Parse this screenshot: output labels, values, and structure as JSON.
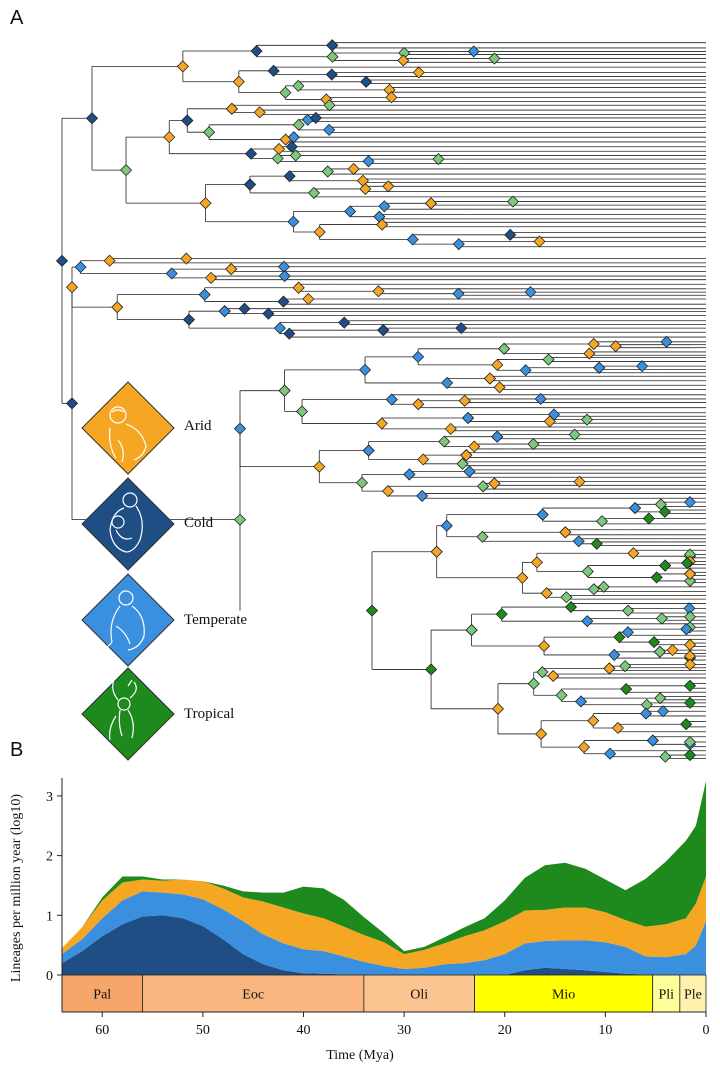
{
  "figure": {
    "panel_a_letter": "A",
    "panel_b_letter": "B"
  },
  "legend": {
    "items": [
      {
        "label": "Arid",
        "color": "#f5a623",
        "icon": "macaque-icon"
      },
      {
        "label": "Cold",
        "color": "#1f4e85",
        "icon": "snow-monkey-pair-icon"
      },
      {
        "label": "Temperate",
        "color": "#3a8fde",
        "icon": "langur-icon"
      },
      {
        "label": "Tropical",
        "color": "#1e8a1e",
        "icon": "gibbon-icon"
      }
    ]
  },
  "colors": {
    "arid": "#f5a623",
    "cold": "#1f4e85",
    "temperate": "#3a8fde",
    "tropical": "#1e8a1e",
    "tropical_light": "#7cc87c"
  },
  "chart_data": {
    "type": "area",
    "stacked": true,
    "ylabel": "Lineages per million year (log10)",
    "xlabel": "Time (Mya)",
    "xlim": [
      64,
      0
    ],
    "ylim": [
      0,
      3.3
    ],
    "xticks": [
      60,
      50,
      40,
      30,
      20,
      10,
      0
    ],
    "yticks": [
      0,
      1,
      2,
      3
    ],
    "x": [
      64,
      62,
      60,
      58,
      56,
      54,
      52,
      50,
      48,
      46,
      44,
      42,
      40,
      38,
      36,
      34,
      32,
      30,
      28,
      26,
      24,
      22,
      20,
      18,
      16,
      14,
      12,
      10,
      8,
      6,
      4,
      2,
      1,
      0
    ],
    "series": [
      {
        "name": "Cold",
        "color": "#1f4e85",
        "values": [
          0.2,
          0.4,
          0.65,
          0.85,
          0.98,
          1.0,
          0.95,
          0.82,
          0.6,
          0.35,
          0.18,
          0.08,
          0.03,
          0.02,
          0.01,
          0.0,
          0.0,
          0.0,
          0.0,
          0.0,
          0.0,
          0.0,
          0.0,
          0.08,
          0.12,
          0.1,
          0.08,
          0.05,
          0.02,
          0.01,
          0.0,
          0.0,
          0.0,
          0.0
        ]
      },
      {
        "name": "Temperate",
        "color": "#3a8fde",
        "values": [
          0.15,
          0.2,
          0.3,
          0.4,
          0.42,
          0.38,
          0.4,
          0.45,
          0.5,
          0.55,
          0.5,
          0.45,
          0.4,
          0.38,
          0.3,
          0.22,
          0.15,
          0.1,
          0.12,
          0.18,
          0.2,
          0.25,
          0.35,
          0.45,
          0.45,
          0.48,
          0.5,
          0.5,
          0.45,
          0.3,
          0.3,
          0.35,
          0.5,
          0.9
        ]
      },
      {
        "name": "Arid",
        "color": "#f5a623",
        "values": [
          0.1,
          0.2,
          0.3,
          0.3,
          0.2,
          0.2,
          0.25,
          0.3,
          0.35,
          0.4,
          0.55,
          0.6,
          0.6,
          0.55,
          0.5,
          0.45,
          0.4,
          0.25,
          0.3,
          0.35,
          0.45,
          0.5,
          0.55,
          0.55,
          0.52,
          0.55,
          0.55,
          0.5,
          0.45,
          0.5,
          0.55,
          0.6,
          0.7,
          0.75
        ]
      },
      {
        "name": "Tropical",
        "color": "#1e8a1e",
        "values": [
          0.0,
          0.0,
          0.05,
          0.1,
          0.05,
          0.02,
          0.0,
          0.0,
          0.05,
          0.1,
          0.15,
          0.25,
          0.45,
          0.5,
          0.45,
          0.3,
          0.15,
          0.05,
          0.05,
          0.1,
          0.15,
          0.2,
          0.35,
          0.55,
          0.75,
          0.75,
          0.65,
          0.55,
          0.5,
          0.8,
          1.05,
          1.3,
          1.3,
          1.6
        ]
      }
    ],
    "epochs": [
      {
        "label": "Pal",
        "start": 64,
        "end": 56,
        "color": "#f6a66a"
      },
      {
        "label": "Eoc",
        "start": 56,
        "end": 34,
        "color": "#f9b77f"
      },
      {
        "label": "Oli",
        "start": 34,
        "end": 23,
        "color": "#fbc591"
      },
      {
        "label": "Mio",
        "start": 23,
        "end": 5.3,
        "color": "#ffff00"
      },
      {
        "label": "Pli",
        "start": 5.3,
        "end": 2.6,
        "color": "#ffff99"
      },
      {
        "label": "Ple",
        "start": 2.6,
        "end": 0,
        "color": "#fff2ae"
      }
    ]
  }
}
